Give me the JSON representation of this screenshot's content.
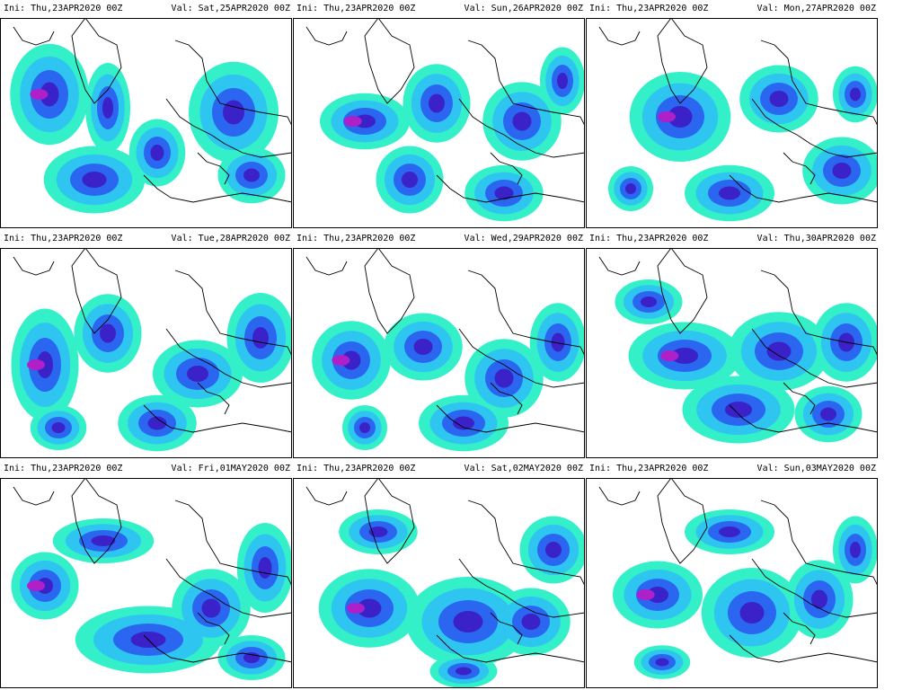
{
  "panels": [
    {
      "ini": "Ini: Thu,23APR2020 00Z",
      "valid": "Val: Sat,25APR2020 00Z"
    },
    {
      "ini": "Ini: Thu,23APR2020 00Z",
      "valid": "Val: Sun,26APR2020 00Z"
    },
    {
      "ini": "Ini: Thu,23APR2020 00Z",
      "valid": "Val: Mon,27APR2020 00Z"
    },
    {
      "ini": "Ini: Thu,23APR2020 00Z",
      "valid": "Val: Tue,28APR2020 00Z"
    },
    {
      "ini": "Ini: Thu,23APR2020 00Z",
      "valid": "Val: Wed,29APR2020 00Z"
    },
    {
      "ini": "Ini: Thu,23APR2020 00Z",
      "valid": "Val: Thu,30APR2020 00Z"
    },
    {
      "ini": "Ini: Thu,23APR2020 00Z",
      "valid": "Val: Fri,01MAY2020 00Z"
    },
    {
      "ini": "Ini: Thu,23APR2020 00Z",
      "valid": "Val: Sat,02MAY2020 00Z"
    },
    {
      "ini": "Ini: Thu,23APR2020 00Z",
      "valid": "Val: Sun,03MAY2020 00Z"
    }
  ],
  "colors": {
    "background": "#ffffff",
    "low": "#33f0c8",
    "mid": "#2ec6f0",
    "high": "#2a66f0",
    "higher": "#3a22c8",
    "max": "#b020c8",
    "coastline": "#000000"
  }
}
